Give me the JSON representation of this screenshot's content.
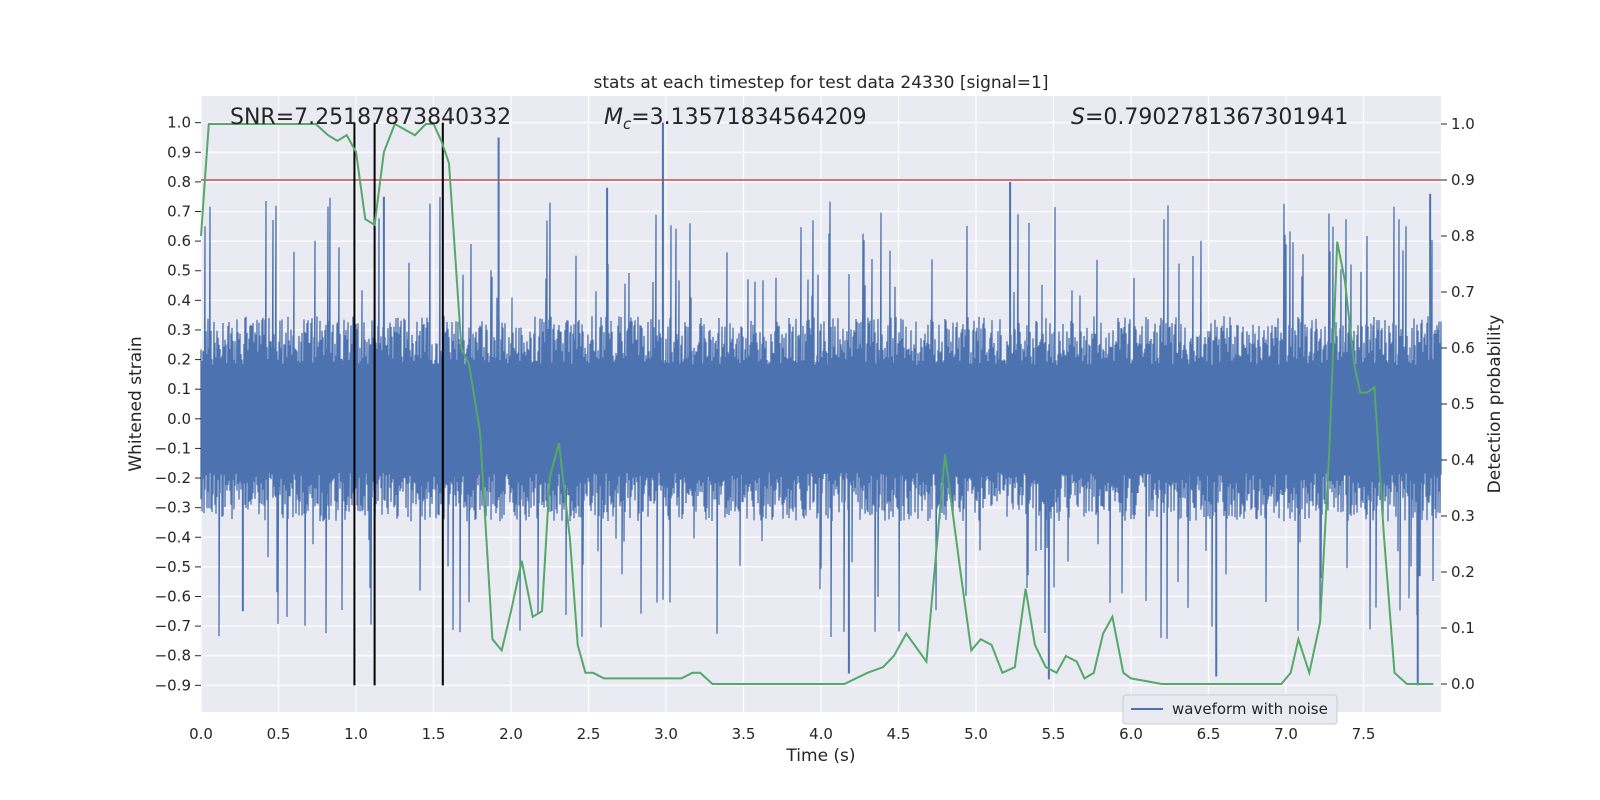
{
  "chart_data": {
    "type": "line",
    "title": "stats at each timestep for test data 24330 [signal=1]",
    "xlabel": "Time (s)",
    "ylabel_left": "Whitened strain",
    "ylabel_right": "Detection probability",
    "xlim": [
      0.0,
      8.0
    ],
    "ylim_left": [
      -0.99,
      1.09
    ],
    "ylim_right": [
      -0.05,
      1.05
    ],
    "x_ticks": [
      0.0,
      0.5,
      1.0,
      1.5,
      2.0,
      2.5,
      3.0,
      3.5,
      4.0,
      4.5,
      5.0,
      5.5,
      6.0,
      6.5,
      7.0,
      7.5
    ],
    "x_tick_labels": [
      "0.0",
      "0.5",
      "1.0",
      "1.5",
      "2.0",
      "2.5",
      "3.0",
      "3.5",
      "4.0",
      "4.5",
      "5.0",
      "5.5",
      "6.0",
      "6.5",
      "7.0",
      "7.5"
    ],
    "y_left_ticks": [
      -0.9,
      -0.8,
      -0.7,
      -0.6,
      -0.5,
      -0.4,
      -0.3,
      -0.2,
      -0.1,
      0.0,
      0.1,
      0.2,
      0.3,
      0.4,
      0.5,
      0.6,
      0.7,
      0.8,
      0.9,
      1.0
    ],
    "y_left_tick_labels": [
      "−0.9",
      "−0.8",
      "−0.7",
      "−0.6",
      "−0.5",
      "−0.4",
      "−0.3",
      "−0.2",
      "−0.1",
      "0.0",
      "0.1",
      "0.2",
      "0.3",
      "0.4",
      "0.5",
      "0.6",
      "0.7",
      "0.8",
      "0.9",
      "1.0"
    ],
    "y_right_ticks": [
      0.0,
      0.1,
      0.2,
      0.3,
      0.4,
      0.5,
      0.6,
      0.7,
      0.8,
      0.9,
      1.0
    ],
    "y_right_tick_labels": [
      "0.0",
      "0.1",
      "0.2",
      "0.3",
      "0.4",
      "0.5",
      "0.6",
      "0.7",
      "0.8",
      "0.9",
      "1.0"
    ],
    "annotations": {
      "snr": "SNR=7.25187873840332",
      "mc_symbol": "M",
      "mc_sub": "c",
      "mc_value": "=3.13571834564209",
      "s_symbol": "S",
      "s_value": "=0.7902781367301941"
    },
    "threshold_right_axis": 0.9,
    "vertical_lines_x": [
      0.99,
      1.12,
      1.56
    ],
    "vertical_lines_ymin_left": -0.9,
    "vertical_lines_ymax_left": 1.0,
    "waveform": {
      "name": "waveform with noise",
      "typical_half_band": 0.33,
      "tallest_peaks": [
        [
          2.98,
          1.0
        ],
        [
          1.92,
          0.95
        ],
        [
          5.22,
          0.8
        ],
        [
          7.93,
          0.76
        ],
        [
          1.18,
          0.75
        ],
        [
          2.62,
          0.78
        ]
      ],
      "deepest_troughs": [
        [
          7.85,
          -0.9
        ],
        [
          4.18,
          -0.86
        ],
        [
          5.47,
          -0.88
        ],
        [
          6.55,
          -0.87
        ],
        [
          0.27,
          -0.65
        ]
      ]
    },
    "series": [
      {
        "name": "",
        "axis": "right",
        "x": [
          0.0,
          0.05,
          0.12,
          0.2,
          0.3,
          0.4,
          0.5,
          0.6,
          0.74,
          0.82,
          0.88,
          0.94,
          1.0,
          1.06,
          1.12,
          1.18,
          1.25,
          1.38,
          1.45,
          1.5,
          1.55,
          1.6,
          1.68,
          1.73,
          1.8,
          1.88,
          1.94,
          2.0,
          2.07,
          2.14,
          2.2,
          2.25,
          2.31,
          2.38,
          2.43,
          2.48,
          2.53,
          2.6,
          2.7,
          2.9,
          3.1,
          3.17,
          3.22,
          3.3,
          3.4,
          3.5,
          3.6,
          3.72,
          3.85,
          4.0,
          4.15,
          4.3,
          4.4,
          4.47,
          4.55,
          4.68,
          4.8,
          4.9,
          4.97,
          5.03,
          5.1,
          5.17,
          5.25,
          5.32,
          5.38,
          5.45,
          5.52,
          5.58,
          5.65,
          5.7,
          5.76,
          5.82,
          5.88,
          5.95,
          6.0,
          6.2,
          6.5,
          6.8,
          6.97,
          7.03,
          7.08,
          7.15,
          7.22,
          7.28,
          7.33,
          7.38,
          7.44,
          7.48,
          7.52,
          7.57,
          7.63,
          7.7,
          7.78,
          7.9,
          7.95
        ],
        "y": [
          0.8,
          1.0,
          1.0,
          1.0,
          1.0,
          1.0,
          1.0,
          1.0,
          1.0,
          0.98,
          0.97,
          0.98,
          0.95,
          0.83,
          0.82,
          0.95,
          1.0,
          0.98,
          1.0,
          1.0,
          0.97,
          0.93,
          0.6,
          0.57,
          0.45,
          0.08,
          0.06,
          0.13,
          0.22,
          0.12,
          0.13,
          0.37,
          0.43,
          0.26,
          0.07,
          0.02,
          0.02,
          0.01,
          0.01,
          0.01,
          0.01,
          0.02,
          0.02,
          0.0,
          0.0,
          0.0,
          0.0,
          0.0,
          0.0,
          0.0,
          0.0,
          0.02,
          0.03,
          0.05,
          0.09,
          0.04,
          0.41,
          0.2,
          0.06,
          0.08,
          0.07,
          0.02,
          0.03,
          0.17,
          0.07,
          0.03,
          0.02,
          0.05,
          0.04,
          0.01,
          0.02,
          0.09,
          0.12,
          0.02,
          0.01,
          0.0,
          0.0,
          0.0,
          0.0,
          0.02,
          0.08,
          0.02,
          0.11,
          0.42,
          0.79,
          0.72,
          0.57,
          0.52,
          0.52,
          0.53,
          0.27,
          0.02,
          0.0,
          0.0,
          0.0
        ]
      }
    ],
    "legend": {
      "entries": [
        "waveform with noise"
      ],
      "placement": "lower-right"
    },
    "grid": true,
    "colors": {
      "background": "#eaeaf2",
      "grid": "#ffffff",
      "waveform": "#4c72b0",
      "probability": "#55a868",
      "threshold": "#c44e52",
      "vertical_lines": "#000000"
    }
  }
}
